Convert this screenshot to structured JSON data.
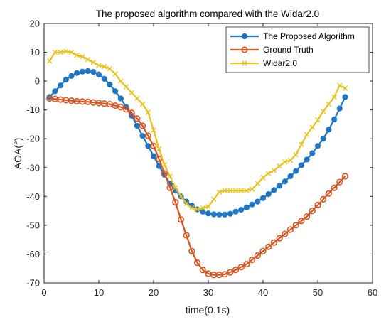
{
  "chart_data": {
    "type": "line",
    "title": "The proposed algorithm compared with the Widar2.0",
    "xlabel": "time(0.1s)",
    "ylabel": "AOA(°)",
    "xlim": [
      0,
      60
    ],
    "ylim": [
      -70,
      20
    ],
    "xticks": [
      0,
      10,
      20,
      30,
      40,
      50,
      60
    ],
    "yticks": [
      -70,
      -60,
      -50,
      -40,
      -30,
      -20,
      -10,
      0,
      10,
      20
    ],
    "legend_position": "top-right",
    "grid": false,
    "series": [
      {
        "name": "The Proposed Algorithm",
        "color": "#1f77c4",
        "marker": "circle-filled",
        "x": [
          1,
          2,
          3,
          4,
          5,
          6,
          7,
          8,
          9,
          10,
          11,
          12,
          13,
          14,
          15,
          16,
          17,
          18,
          19,
          20,
          21,
          22,
          23,
          24,
          25,
          26,
          27,
          28,
          29,
          30,
          31,
          32,
          33,
          34,
          35,
          36,
          37,
          38,
          39,
          40,
          41,
          42,
          43,
          44,
          45,
          46,
          47,
          48,
          49,
          50,
          51,
          52,
          53,
          54,
          55
        ],
        "values": [
          -5.5,
          -3.5,
          -1.5,
          0.5,
          1.8,
          2.8,
          3.3,
          3.5,
          3.2,
          2.3,
          0.8,
          -1.2,
          -3.5,
          -6,
          -9,
          -12,
          -15.5,
          -19,
          -22.5,
          -26,
          -29.5,
          -32.5,
          -35.5,
          -38,
          -40,
          -41.8,
          -43.2,
          -44.5,
          -45.3,
          -45.9,
          -46.2,
          -46.3,
          -46.3,
          -46,
          -45.3,
          -44.6,
          -43.8,
          -42.8,
          -41.8,
          -40.6,
          -39.2,
          -37.8,
          -36.3,
          -34.8,
          -33,
          -31.2,
          -29.2,
          -27.2,
          -25,
          -22.5,
          -20,
          -16.8,
          -13.3,
          -9.5,
          -5.5
        ]
      },
      {
        "name": "Ground Truth",
        "color": "#d9531e",
        "marker": "circle-open",
        "x": [
          1,
          2,
          3,
          4,
          5,
          6,
          7,
          8,
          9,
          10,
          11,
          12,
          13,
          14,
          15,
          16,
          17,
          18,
          19,
          20,
          21,
          22,
          23,
          24,
          25,
          26,
          27,
          28,
          29,
          30,
          31,
          32,
          33,
          34,
          35,
          36,
          37,
          38,
          39,
          40,
          41,
          42,
          43,
          44,
          45,
          46,
          47,
          48,
          49,
          50,
          51,
          52,
          53,
          54,
          55
        ],
        "values": [
          -6,
          -6.2,
          -6.4,
          -6.6,
          -6.8,
          -7,
          -7.1,
          -7.2,
          -7.4,
          -7.6,
          -7.8,
          -8,
          -8.5,
          -9,
          -9.8,
          -11,
          -13,
          -15.5,
          -19,
          -22.5,
          -27,
          -32,
          -37,
          -42,
          -48,
          -53.5,
          -59,
          -63,
          -65.5,
          -66.8,
          -67.2,
          -67.2,
          -67,
          -66.3,
          -65.5,
          -64.5,
          -63.5,
          -62,
          -60.5,
          -59,
          -57.5,
          -56,
          -54.5,
          -53,
          -51.5,
          -50,
          -48.5,
          -47,
          -45,
          -43,
          -41,
          -39,
          -37,
          -35,
          -33
        ]
      },
      {
        "name": "Widar2.0",
        "color": "#e8c21b",
        "marker": "x",
        "x": [
          1,
          2,
          3,
          4,
          5,
          6,
          7,
          8,
          9,
          10,
          11,
          12,
          13,
          14,
          15,
          16,
          17,
          18,
          19,
          20,
          21,
          22,
          23,
          24,
          25,
          26,
          27,
          28,
          29,
          30,
          31,
          32,
          33,
          34,
          35,
          36,
          37,
          38,
          39,
          40,
          41,
          42,
          43,
          44,
          45,
          46,
          47,
          48,
          49,
          50,
          51,
          52,
          53,
          54,
          55
        ],
        "values": [
          7,
          10,
          10,
          10.3,
          10,
          9,
          8.5,
          7.5,
          6.5,
          5.5,
          5,
          4.3,
          2.5,
          0,
          -2,
          -4,
          -6,
          -8,
          -10.8,
          -17,
          -23.5,
          -29,
          -33,
          -37,
          -40,
          -42.5,
          -44,
          -44.5,
          -44,
          -43.5,
          -41,
          -38.5,
          -38,
          -38,
          -38,
          -38,
          -38,
          -37.5,
          -35.5,
          -33.5,
          -32,
          -31,
          -29.5,
          -28,
          -27.5,
          -25.5,
          -22,
          -18.5,
          -16,
          -13.5,
          -10.5,
          -8,
          -5.5,
          -1.5,
          -2.5
        ]
      }
    ]
  }
}
